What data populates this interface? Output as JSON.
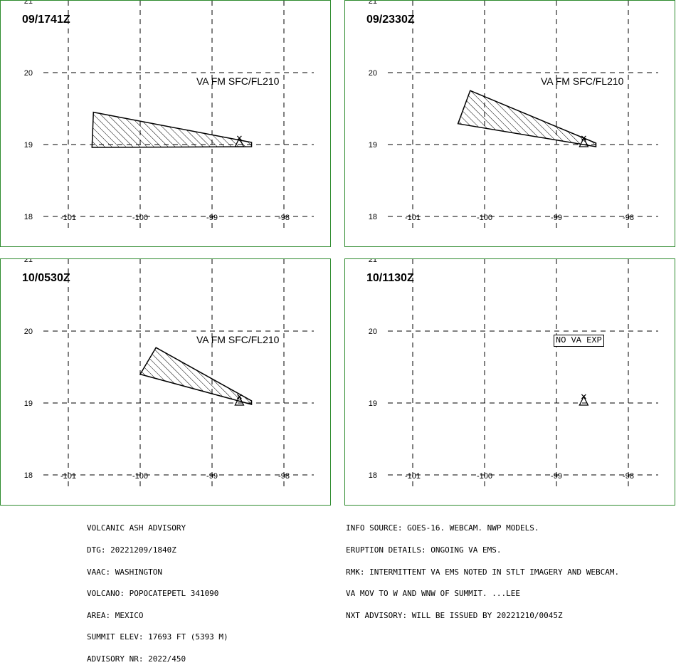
{
  "panels": [
    {
      "time": "09/1741Z",
      "label": "VA FM SFC/FL210",
      "shape": [
        [
          -100.65,
          19.45
        ],
        [
          -98.45,
          19.03
        ],
        [
          -98.45,
          18.97
        ],
        [
          -100.67,
          18.96
        ]
      ],
      "nova": false
    },
    {
      "time": "09/2330Z",
      "label": "VA FM SFC/FL210",
      "shape": [
        [
          -100.2,
          19.75
        ],
        [
          -98.45,
          19.02
        ],
        [
          -98.45,
          18.97
        ],
        [
          -100.37,
          19.29
        ]
      ],
      "nova": false
    },
    {
      "time": "10/0530Z",
      "label": "VA FM SFC/FL210",
      "shape": [
        [
          -99.78,
          19.77
        ],
        [
          -98.45,
          19.03
        ],
        [
          -98.45,
          18.98
        ],
        [
          -100.0,
          19.4
        ]
      ],
      "nova": false
    },
    {
      "time": "10/1130Z",
      "label": "NO VA EXP",
      "shape": [],
      "nova": true
    }
  ],
  "axes": {
    "lon_ticks": [
      "-101",
      "-100",
      "-99",
      "-98"
    ],
    "lat_ticks": [
      "21",
      "20",
      "19",
      "18"
    ]
  },
  "volcano": {
    "lon": -98.62,
    "lat": 19.02
  },
  "footer_left": [
    "VOLCANIC ASH ADVISORY",
    "DTG: 20221209/1840Z",
    "VAAC: WASHINGTON",
    "VOLCANO: POPOCATEPETL 341090",
    "AREA: MEXICO",
    "SUMMIT ELEV: 17693 FT (5393 M)",
    "ADVISORY NR: 2022/450"
  ],
  "footer_right": [
    "INFO SOURCE: GOES-16. WEBCAM. NWP MODELS.",
    "ERUPTION DETAILS: ONGOING VA EMS.",
    "RMK: INTERMITTENT VA EMS NOTED IN STLT IMAGERY AND WEBCAM.",
    "VA MOV TO W AND WNW OF SUMMIT. ...LEE",
    "NXT ADVISORY: WILL BE ISSUED BY 20221210/0045Z"
  ],
  "colors": {
    "frame": "#2e8b2e",
    "ink": "#000000"
  }
}
